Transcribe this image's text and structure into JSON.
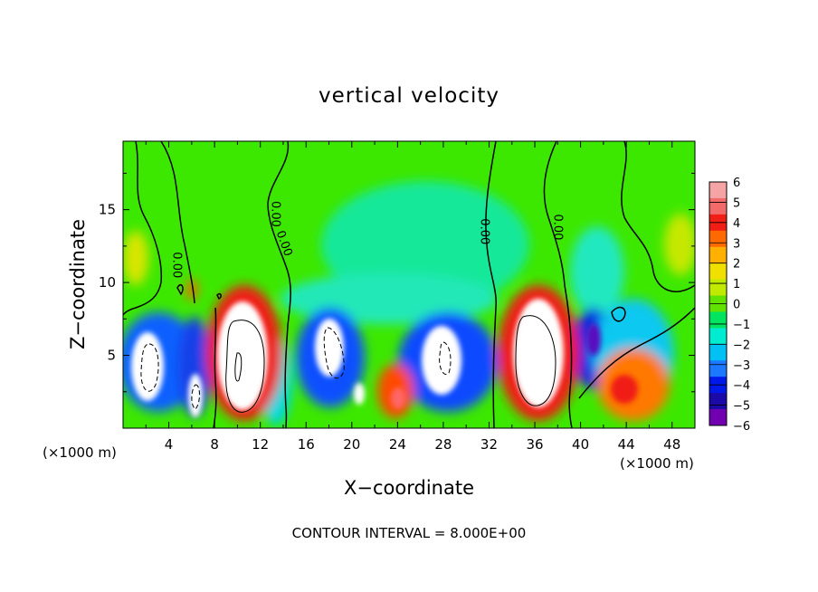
{
  "chart_data": {
    "type": "heatmap",
    "title": "vertical velocity",
    "xlabel": "X−coordinate",
    "ylabel": "Z−coordinate",
    "x_unit_left": "(×1000 m)",
    "x_unit_right": "(×1000 m)",
    "footer": "CONTOUR INTERVAL = 8.000E+00",
    "xlim": [
      0,
      50
    ],
    "ylim": [
      0,
      19.7
    ],
    "x_ticks": [
      4,
      8,
      12,
      16,
      20,
      24,
      28,
      32,
      36,
      40,
      44,
      48
    ],
    "y_ticks": [
      5,
      10,
      15
    ],
    "colorbar": {
      "ticks": [
        "6",
        "5",
        "4",
        "3",
        "2",
        "1",
        "0",
        "−1",
        "−2",
        "−3",
        "−4",
        "−5",
        "−6"
      ],
      "colors": [
        "#f4a4a4",
        "#f36a6a",
        "#f01e14",
        "#ff6a00",
        "#ffb000",
        "#f0e000",
        "#c0ea00",
        "#62e200",
        "#00e460",
        "#00ecd0",
        "#00c0f4",
        "#1c78ff",
        "#0018e8",
        "#1c0aa8",
        "#7000b0"
      ]
    },
    "contour_labels": [
      {
        "text": "0.00",
        "x": 4.4,
        "y": 11.2,
        "rotate": 90
      },
      {
        "text": "0.00",
        "x": 13.8,
        "y": 12.6,
        "rotate": 70
      },
      {
        "text": "0.00",
        "x": 13.0,
        "y": 14.7,
        "rotate": 90
      },
      {
        "text": "0.00",
        "x": 31.3,
        "y": 13.5,
        "rotate": 90
      },
      {
        "text": "0.00",
        "x": 37.7,
        "y": 13.8,
        "rotate": 90
      }
    ]
  }
}
